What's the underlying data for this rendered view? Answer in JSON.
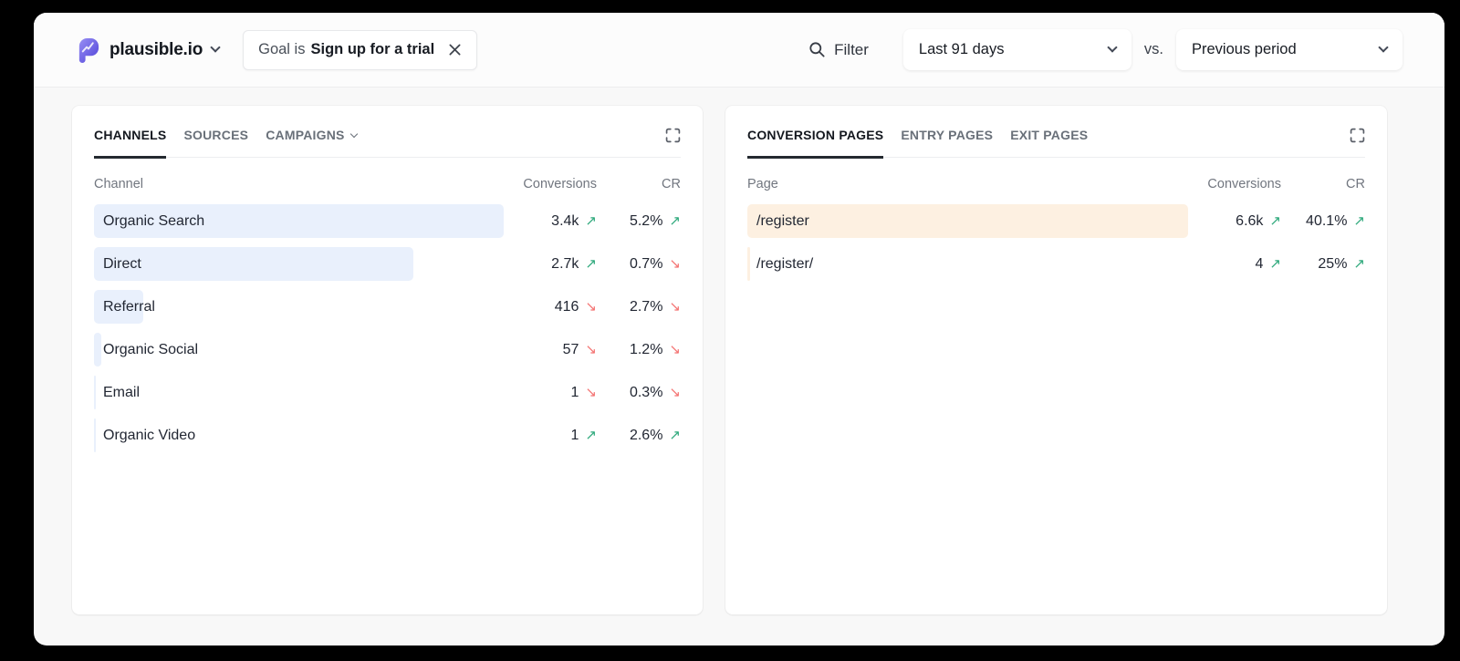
{
  "header": {
    "site_name": "plausible.io",
    "goal_filter": {
      "prefix": "Goal is",
      "value": "Sign up for a trial"
    },
    "filter_label": "Filter",
    "date_range": "Last 91 days",
    "vs_label": "vs.",
    "comparison": "Previous period"
  },
  "channels_panel": {
    "tabs": [
      {
        "label": "CHANNELS",
        "active": true
      },
      {
        "label": "SOURCES",
        "active": false
      },
      {
        "label": "CAMPAIGNS",
        "active": false
      }
    ],
    "columns": {
      "name": "Channel",
      "conversions": "Conversions",
      "cr": "CR"
    },
    "rows": [
      {
        "name": "Organic Search",
        "conversions": "3.4k",
        "conversions_trend": "up",
        "cr": "5.2%",
        "cr_trend": "up",
        "bar_pct": 100
      },
      {
        "name": "Direct",
        "conversions": "2.7k",
        "conversions_trend": "up",
        "cr": "0.7%",
        "cr_trend": "down",
        "bar_pct": 78
      },
      {
        "name": "Referral",
        "conversions": "416",
        "conversions_trend": "down",
        "cr": "2.7%",
        "cr_trend": "down",
        "bar_pct": 12
      },
      {
        "name": "Organic Social",
        "conversions": "57",
        "conversions_trend": "down",
        "cr": "1.2%",
        "cr_trend": "down",
        "bar_pct": 1.8
      },
      {
        "name": "Email",
        "conversions": "1",
        "conversions_trend": "down",
        "cr": "0.3%",
        "cr_trend": "down",
        "bar_pct": 0.5
      },
      {
        "name": "Organic Video",
        "conversions": "1",
        "conversions_trend": "up",
        "cr": "2.6%",
        "cr_trend": "up",
        "bar_pct": 0.5
      }
    ]
  },
  "pages_panel": {
    "tabs": [
      {
        "label": "CONVERSION PAGES",
        "active": true
      },
      {
        "label": "ENTRY PAGES",
        "active": false
      },
      {
        "label": "EXIT PAGES",
        "active": false
      }
    ],
    "columns": {
      "name": "Page",
      "conversions": "Conversions",
      "cr": "CR"
    },
    "rows": [
      {
        "name": "/register",
        "conversions": "6.6k",
        "conversions_trend": "up",
        "cr": "40.1%",
        "cr_trend": "up",
        "bar_pct": 100
      },
      {
        "name": "/register/",
        "conversions": "4",
        "conversions_trend": "up",
        "cr": "25%",
        "cr_trend": "up",
        "bar_pct": 0.6
      }
    ]
  },
  "colors": {
    "channel_bar": "#e9f0fc",
    "page_bar": "#fdf0e1",
    "trend_up": "#2fa97c",
    "trend_down": "#f47372",
    "brand_start": "#988ff4",
    "brand_end": "#4f42d8"
  }
}
